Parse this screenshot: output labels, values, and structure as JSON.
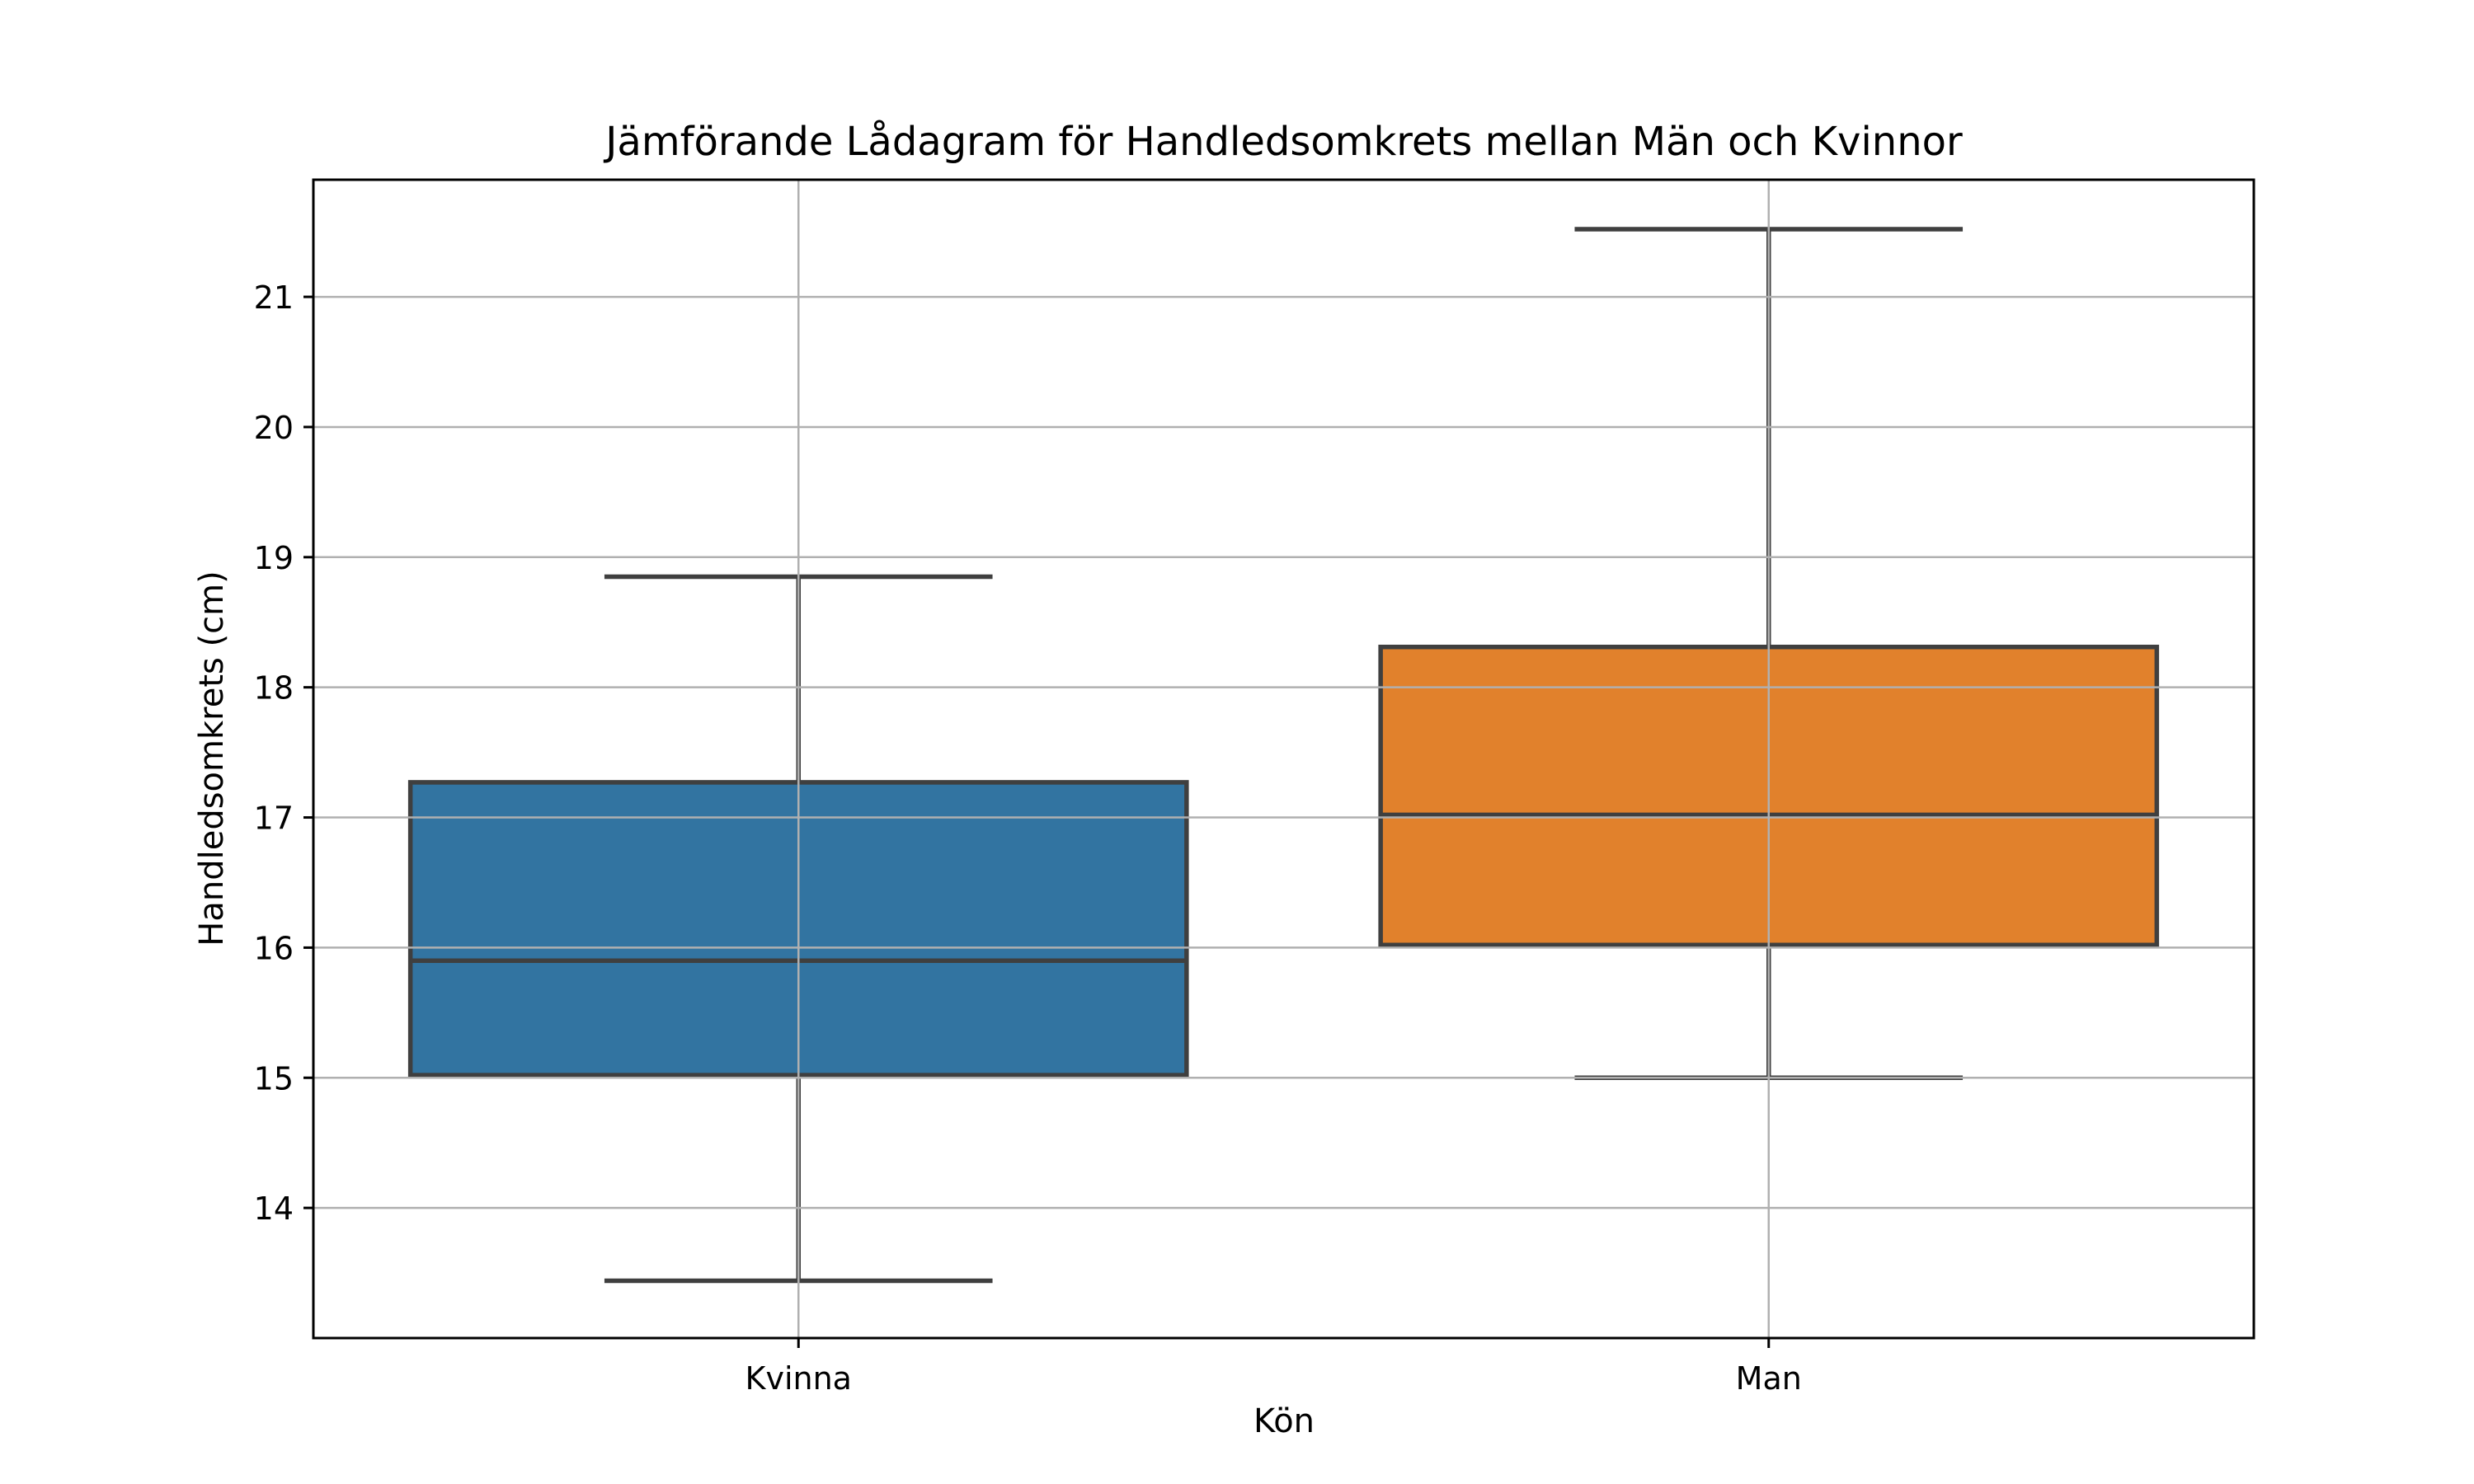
{
  "chart_data": {
    "type": "box",
    "title": "Jämförande Lådagram för Handledsomkrets mellan Män och Kvinnor",
    "xlabel": "Kön",
    "ylabel": "Handledsomkrets (cm)",
    "ylim": [
      13.0,
      21.9
    ],
    "yticks": [
      "14",
      "15",
      "16",
      "17",
      "18",
      "19",
      "20",
      "21"
    ],
    "categories": [
      "Kvinna",
      "Man"
    ],
    "grid": true,
    "boxes": [
      {
        "category": "Kvinna",
        "whisker_low": 13.44,
        "q1": 15.02,
        "median": 15.9,
        "q3": 17.27,
        "whisker_high": 18.85,
        "color": "#3274a1"
      },
      {
        "category": "Man",
        "whisker_low": 15.0,
        "q1": 16.02,
        "median": 17.02,
        "q3": 18.31,
        "whisker_high": 21.52,
        "color": "#e1812c"
      }
    ],
    "line_color": "#3f3f3f",
    "grid_color": "#b0b0b0"
  }
}
